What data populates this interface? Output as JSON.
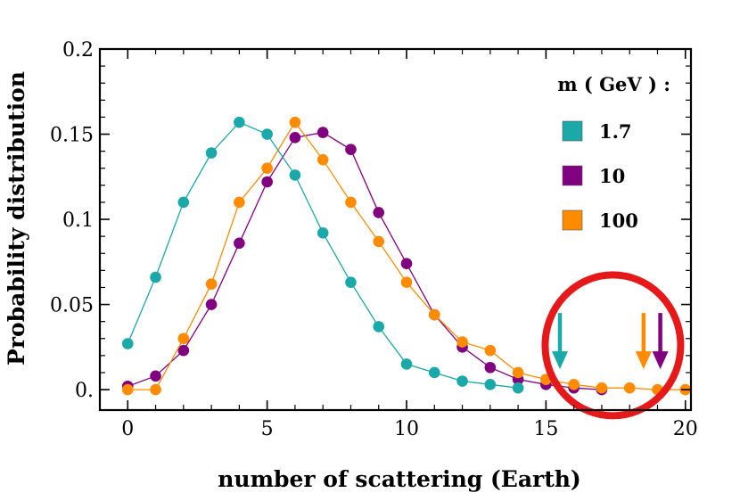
{
  "chart_data": {
    "type": "scatter",
    "xlabel": "number of scattering (Earth)",
    "ylabel": "Probability distribution",
    "xlim": [
      -1,
      20.2
    ],
    "ylim": [
      -0.012,
      0.2
    ],
    "xticks": [
      0,
      5,
      10,
      15,
      20
    ],
    "xtick_labels": [
      "0",
      "5",
      "10",
      "15",
      "20"
    ],
    "yticks": [
      0,
      0.05,
      0.1,
      0.15,
      0.2
    ],
    "ytick_labels": [
      "0.",
      "0.05",
      "0.1",
      "0.15",
      "0.2"
    ],
    "grid": false,
    "legend": {
      "title": "m ( GeV ) :",
      "position": "top-right"
    },
    "series": [
      {
        "name": "1.7",
        "color": "#1aa8a8",
        "x": [
          0,
          1,
          2,
          3,
          4,
          5,
          6,
          7,
          8,
          9,
          10,
          11,
          12,
          13,
          14
        ],
        "y": [
          0.027,
          0.066,
          0.11,
          0.139,
          0.157,
          0.15,
          0.126,
          0.092,
          0.063,
          0.037,
          0.015,
          0.01,
          0.005,
          0.003,
          0.001
        ],
        "arrow_x": 15.5
      },
      {
        "name": "10",
        "color": "#800080",
        "x": [
          0,
          1,
          2,
          3,
          4,
          5,
          6,
          7,
          8,
          9,
          10,
          11,
          12,
          13,
          14,
          15,
          16,
          17
        ],
        "y": [
          0.002,
          0.008,
          0.023,
          0.05,
          0.086,
          0.122,
          0.148,
          0.151,
          0.141,
          0.104,
          0.074,
          0.044,
          0.025,
          0.013,
          0.006,
          0.003,
          0.001,
          0.0
        ],
        "arrow_x": 19.1
      },
      {
        "name": "100",
        "color": "#ff8c00",
        "x": [
          0,
          1,
          2,
          3,
          4,
          5,
          6,
          7,
          8,
          9,
          10,
          11,
          12,
          13,
          14,
          15,
          16,
          17,
          18,
          19,
          20
        ],
        "y": [
          0.0,
          0.0,
          0.03,
          0.062,
          0.11,
          0.13,
          0.157,
          0.135,
          0.11,
          0.087,
          0.063,
          0.044,
          0.028,
          0.023,
          0.01,
          0.006,
          0.003,
          0.001,
          0.001,
          0.0,
          0.0
        ],
        "arrow_x": 18.5
      }
    ],
    "annotation": {
      "shape": "circle",
      "color": "#e6191a",
      "center": [
        17.4,
        0.026
      ]
    }
  }
}
